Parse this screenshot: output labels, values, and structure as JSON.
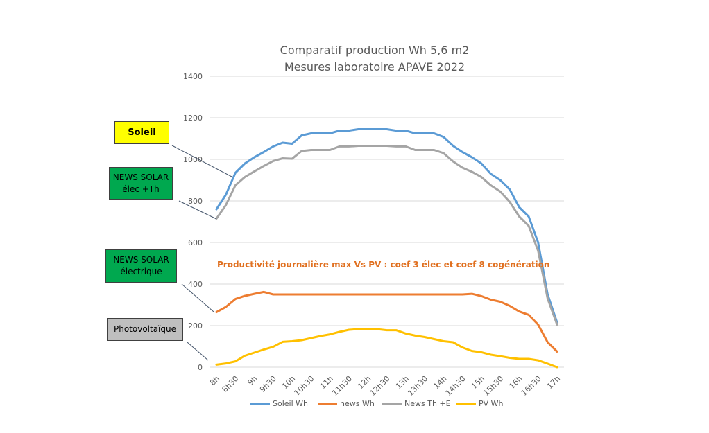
{
  "chart_data": {
    "type": "line",
    "title": "Comparatif production Wh 5,6 m2",
    "subtitle": "Mesures laboratoire APAVE 2022",
    "ylim": [
      0,
      1400
    ],
    "yticks": [
      0,
      200,
      400,
      600,
      800,
      1000,
      1200,
      1400
    ],
    "grid": true,
    "legend_position": "bottom",
    "tick_labels": [
      "8h",
      "8h30",
      "9h",
      "9h30",
      "10h",
      "10h30",
      "11h",
      "11h30",
      "12h",
      "12h30",
      "13h",
      "13h30",
      "14h",
      "14h30",
      "15h",
      "15h30",
      "16h",
      "16h30",
      "17h"
    ],
    "x_hours": [
      8,
      8.25,
      8.5,
      8.75,
      9,
      9.25,
      9.5,
      9.75,
      10,
      10.25,
      10.5,
      10.75,
      11,
      11.25,
      11.5,
      11.75,
      12,
      12.25,
      12.5,
      12.75,
      13,
      13.25,
      13.5,
      13.75,
      14,
      14.25,
      14.5,
      14.75,
      15,
      15.25,
      15.5,
      15.75,
      16,
      16.25,
      16.5,
      16.75,
      17
    ],
    "series": [
      {
        "name": "Soleil Wh",
        "color": "#5b9bd5",
        "values": [
          760,
          830,
          935,
          980,
          1010,
          1035,
          1062,
          1080,
          1075,
          1115,
          1125,
          1125,
          1125,
          1138,
          1138,
          1145,
          1145,
          1145,
          1145,
          1138,
          1138,
          1125,
          1125,
          1125,
          1108,
          1065,
          1035,
          1010,
          980,
          930,
          900,
          855,
          770,
          725,
          600,
          350,
          215
        ]
      },
      {
        "name": "news Wh",
        "color": "#ed7d31",
        "values": [
          265,
          290,
          328,
          343,
          353,
          362,
          350,
          350,
          350,
          350,
          350,
          350,
          350,
          350,
          350,
          350,
          350,
          350,
          350,
          350,
          350,
          350,
          350,
          350,
          350,
          350,
          350,
          353,
          342,
          325,
          315,
          295,
          268,
          252,
          205,
          120,
          75
        ]
      },
      {
        "name": "News Th +E",
        "color": "#a5a5a5",
        "values": [
          715,
          780,
          875,
          915,
          942,
          968,
          992,
          1005,
          1003,
          1040,
          1045,
          1045,
          1045,
          1062,
          1062,
          1065,
          1065,
          1065,
          1065,
          1062,
          1062,
          1045,
          1045,
          1045,
          1030,
          990,
          960,
          940,
          915,
          875,
          845,
          795,
          725,
          680,
          560,
          330,
          205
        ]
      },
      {
        "name": "PV Wh",
        "color": "#ffc000",
        "values": [
          12,
          18,
          28,
          55,
          70,
          85,
          98,
          122,
          125,
          130,
          140,
          150,
          158,
          170,
          180,
          183,
          183,
          183,
          178,
          178,
          162,
          152,
          145,
          135,
          125,
          120,
          95,
          78,
          72,
          60,
          53,
          45,
          40,
          40,
          33,
          17,
          0
        ]
      }
    ],
    "annotations": {
      "productivity": "Productivité journalière max Vs PV : coef 3 élec et coef 8 cogénération",
      "labels": [
        "Soleil",
        "NEWS SOLAR élec +Th",
        "NEWS SOLAR électrique",
        "Photovoltaïque"
      ]
    }
  },
  "labels": {
    "soleil": "Soleil",
    "ns_th_line1": "NEWS SOLAR",
    "ns_th_line2": "élec +Th",
    "ns_el_line1": "NEWS SOLAR",
    "ns_el_line2": "électrique",
    "pv": "Photovoltaïque"
  }
}
